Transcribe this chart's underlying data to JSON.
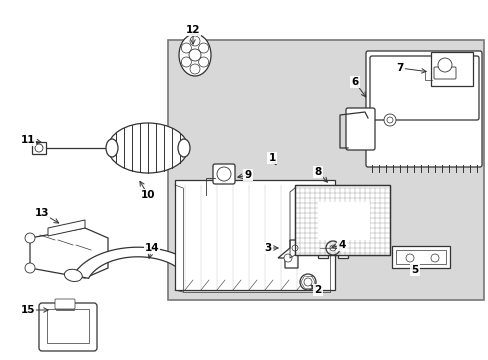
{
  "bg_color": "#ffffff",
  "line_color": "#333333",
  "gray_box_color": "#d8d8d8",
  "white": "#ffffff",
  "label_defs": [
    [
      "1",
      272,
      158,
      278,
      168
    ],
    [
      "2",
      318,
      290,
      308,
      283
    ],
    [
      "3",
      268,
      248,
      282,
      248
    ],
    [
      "4",
      342,
      245,
      328,
      248
    ],
    [
      "5",
      415,
      270,
      408,
      265
    ],
    [
      "6",
      355,
      82,
      368,
      100
    ],
    [
      "7",
      400,
      68,
      430,
      72
    ],
    [
      "8",
      318,
      172,
      330,
      185
    ],
    [
      "9",
      248,
      175,
      234,
      178
    ],
    [
      "10",
      148,
      195,
      138,
      178
    ],
    [
      "11",
      28,
      140,
      45,
      143
    ],
    [
      "12",
      193,
      30,
      193,
      48
    ],
    [
      "13",
      42,
      213,
      62,
      225
    ],
    [
      "14",
      152,
      248,
      148,
      262
    ],
    [
      "15",
      28,
      310,
      52,
      310
    ]
  ]
}
